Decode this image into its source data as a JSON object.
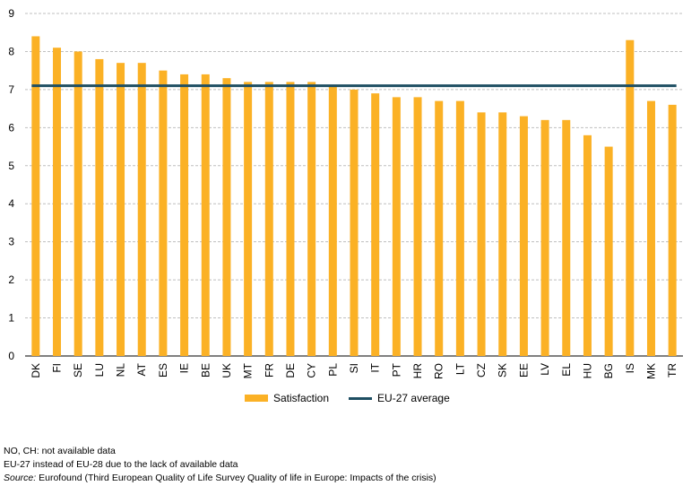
{
  "chart_data": {
    "type": "bar",
    "categories": [
      "DK",
      "FI",
      "SE",
      "LU",
      "NL",
      "AT",
      "ES",
      "IE",
      "BE",
      "UK",
      "MT",
      "FR",
      "DE",
      "CY",
      "PL",
      "SI",
      "IT",
      "PT",
      "HR",
      "RO",
      "LT",
      "CZ",
      "SK",
      "EE",
      "LV",
      "EL",
      "HU",
      "BG",
      "IS",
      "MK",
      "TR"
    ],
    "series": [
      {
        "name": "Satisfaction",
        "type": "bar",
        "color": "#FBB125",
        "values": [
          8.4,
          8.1,
          8.0,
          7.8,
          7.7,
          7.7,
          7.5,
          7.4,
          7.4,
          7.3,
          7.2,
          7.2,
          7.2,
          7.2,
          7.1,
          7.0,
          6.9,
          6.8,
          6.8,
          6.7,
          6.7,
          6.4,
          6.4,
          6.3,
          6.2,
          6.2,
          5.8,
          5.5,
          8.3,
          6.7,
          6.6
        ]
      },
      {
        "name": "EU-27 average",
        "type": "line",
        "color": "#1E4E62",
        "value": 7.1
      }
    ],
    "yticks": [
      0,
      1,
      2,
      3,
      4,
      5,
      6,
      7,
      8,
      9
    ],
    "ylim": [
      0,
      9
    ],
    "grid": true,
    "legend": "bottom"
  },
  "notes": {
    "line1": "NO, CH: not available data",
    "line2": "EU-27 instead of EU-28 due to the lack of available data",
    "source_label": "Source:",
    "source_text": " Eurofound (Third European Quality of Life Survey Quality of life in Europe: Impacts of the crisis)"
  }
}
